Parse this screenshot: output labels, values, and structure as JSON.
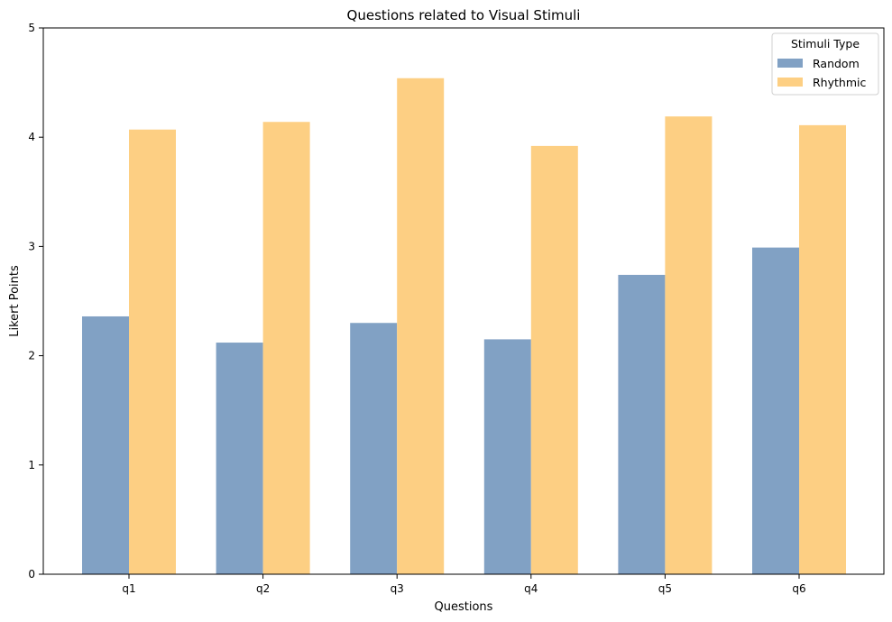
{
  "chart_data": {
    "type": "bar",
    "title": "Questions related to Visual Stimuli",
    "xlabel": "Questions",
    "ylabel": "Likert Points",
    "categories": [
      "q1",
      "q2",
      "q3",
      "q4",
      "q5",
      "q6"
    ],
    "series": [
      {
        "name": "Random",
        "color": "#81a1c4",
        "values": [
          2.36,
          2.12,
          2.3,
          2.15,
          2.74,
          2.99
        ]
      },
      {
        "name": "Rhythmic",
        "color": "#fdcf83",
        "values": [
          4.07,
          4.14,
          4.54,
          3.92,
          4.19,
          4.11
        ]
      }
    ],
    "ylim": [
      0,
      5
    ],
    "yticks": [
      "0",
      "1",
      "2",
      "3",
      "4",
      "5"
    ],
    "legend": {
      "title": "Stimuli Type",
      "position": "top-right"
    },
    "grid": false
  }
}
